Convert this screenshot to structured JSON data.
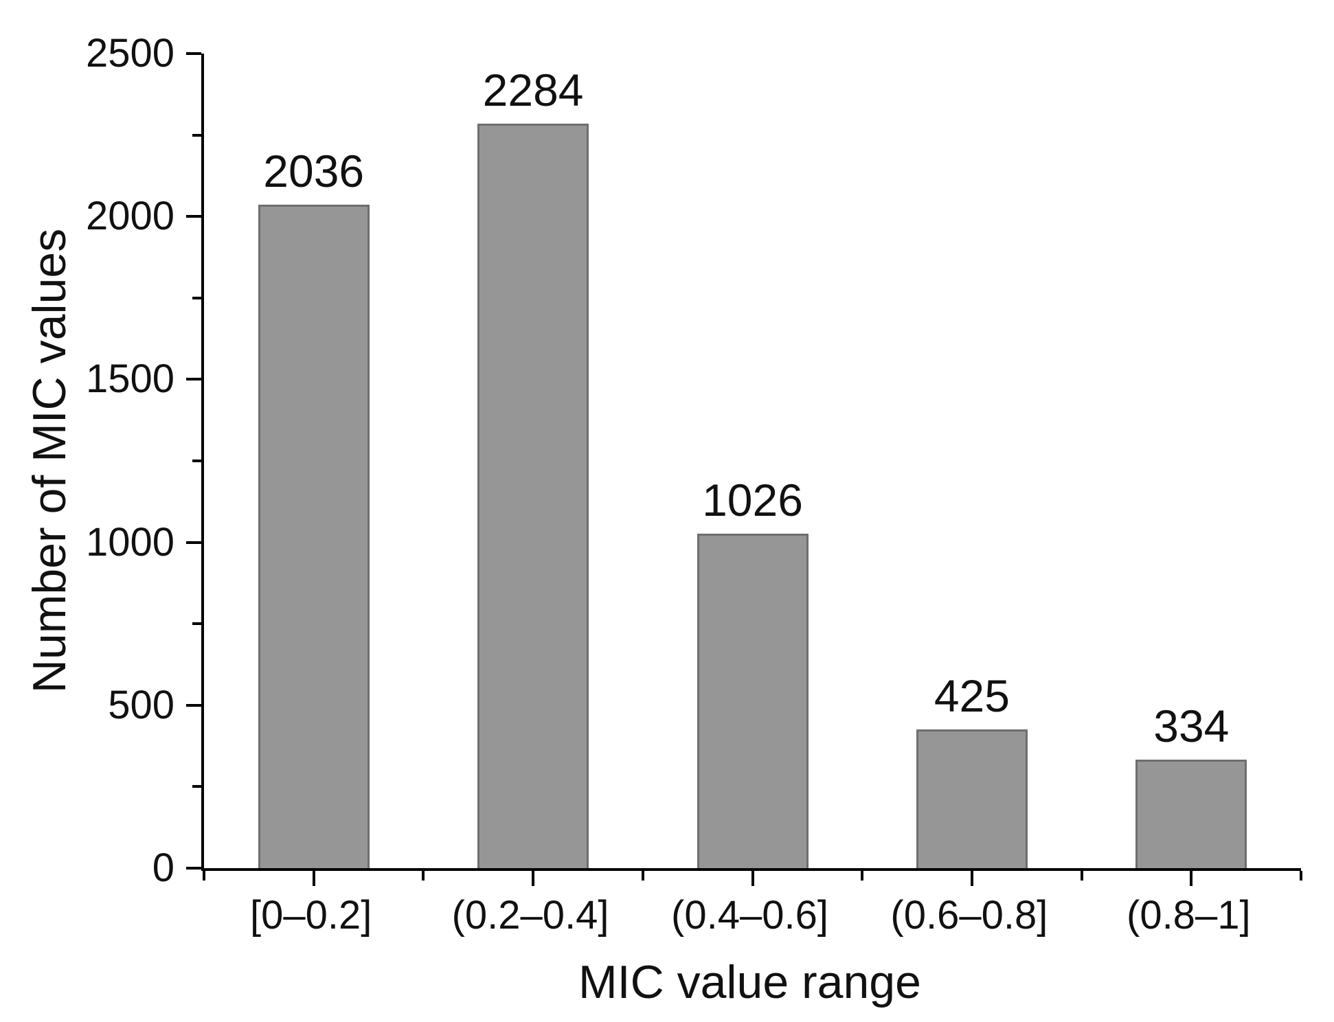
{
  "chart_data": {
    "type": "bar",
    "categories": [
      "[0–0.2]",
      "(0.2–0.4]",
      "(0.4–0.6]",
      "(0.6–0.8]",
      "(0.8–1]"
    ],
    "values": [
      2036,
      2284,
      1026,
      425,
      334
    ],
    "bar_labels": [
      "2036",
      "2284",
      "1026",
      "425",
      "334"
    ],
    "title": "",
    "xlabel": "MIC value range",
    "ylabel": "Number of MIC values",
    "ylim": [
      0,
      2500
    ],
    "y_major_ticks": [
      0,
      500,
      1000,
      1500,
      2000,
      2500
    ],
    "y_minor_ticks": [
      250,
      750,
      1250,
      1750,
      2250
    ],
    "grid": false,
    "legend": false,
    "bar_fill_color": "#969696",
    "bar_border_color": "#6e6e6e",
    "axis_color": "#000000",
    "text_color": "#111111",
    "background_color": "#ffffff"
  }
}
